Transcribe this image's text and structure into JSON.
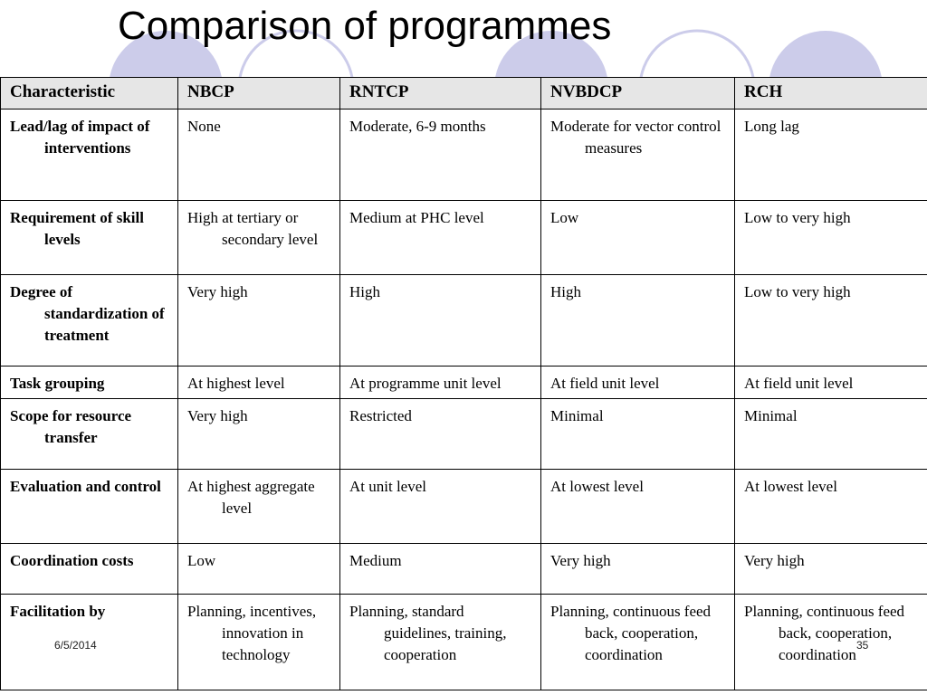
{
  "title": "Comparison of programmes",
  "table": {
    "headers": [
      "Characteristic",
      "NBCP",
      "RNTCP",
      "NVBDCP",
      "RCH"
    ],
    "rows": [
      [
        "Lead/lag of impact of interventions",
        "None",
        "Moderate, 6-9 months",
        "Moderate for vector control measures",
        "Long lag"
      ],
      [
        "Requirement of skill levels",
        "High at tertiary or secondary level",
        "Medium at PHC level",
        "Low",
        "Low to very high"
      ],
      [
        "Degree of standardization of treatment",
        "Very high",
        "High",
        "High",
        "Low to very high"
      ],
      [
        "Task grouping",
        "At highest level",
        "At programme unit level",
        "At field unit level",
        "At field unit level"
      ],
      [
        "Scope for resource transfer",
        "Very high",
        "Restricted",
        "Minimal",
        "Minimal"
      ],
      [
        "Evaluation and control",
        "At highest aggregate level",
        "At unit level",
        "At lowest level",
        "At lowest level"
      ],
      [
        "Coordination costs",
        "Low",
        "Medium",
        "Very high",
        "Very high"
      ],
      [
        "Facilitation by",
        "Planning, incentives, innovation in technology",
        "Planning, standard guidelines, training, cooperation",
        "Planning, continuous feed back, cooperation, coordination",
        "Planning, continuous feed back, cooperation, coordination"
      ]
    ]
  },
  "footer": {
    "date": "6/5/2014",
    "page": "35"
  },
  "colors": {
    "circle_fill": "#ccccea",
    "circle_stroke": "#ccccea",
    "header_bg": "#e6e6e6"
  }
}
